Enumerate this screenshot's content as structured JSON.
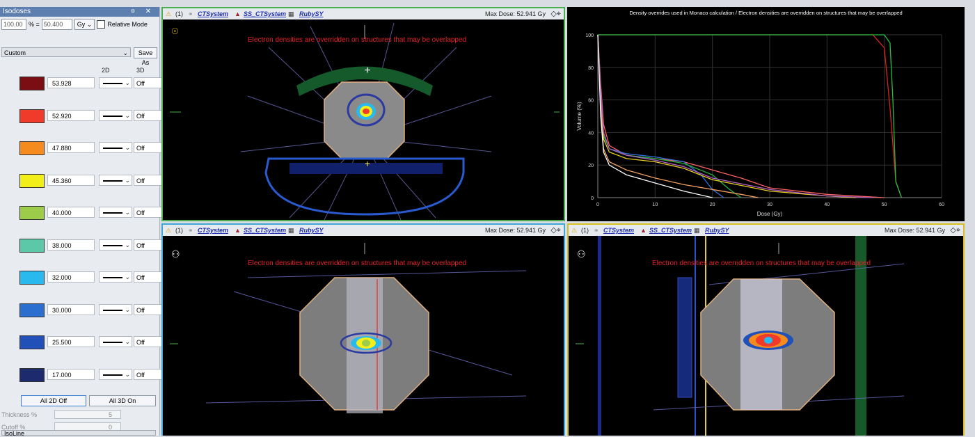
{
  "isodoses": {
    "title": "Isodoses",
    "ctrl_pin": "¤",
    "ctrl_close": "✕",
    "percent_value": "100.00",
    "percent_sign": "% =",
    "dose_value": "50.400",
    "unit": "Gy",
    "relative_mode_label": "Relative Mode",
    "preset": "Custom",
    "save_as": "Save As",
    "col_2d": "2D",
    "col_3d": "3D",
    "levels": [
      {
        "value": "53.928",
        "color": "#7a0e12",
        "toggle": "Off"
      },
      {
        "value": "52.920",
        "color": "#f03a2a",
        "toggle": "Off"
      },
      {
        "value": "47.880",
        "color": "#f58a1f",
        "toggle": "Off"
      },
      {
        "value": "45.360",
        "color": "#f2ee1a",
        "toggle": "Off"
      },
      {
        "value": "40.000",
        "color": "#9ccc4a",
        "toggle": "Off"
      },
      {
        "value": "38.000",
        "color": "#5cc8a8",
        "toggle": "Off"
      },
      {
        "value": "32.000",
        "color": "#2ab9ee",
        "toggle": "Off"
      },
      {
        "value": "30.000",
        "color": "#2a6ed0",
        "toggle": "Off"
      },
      {
        "value": "25.500",
        "color": "#2050b8",
        "toggle": "Off"
      },
      {
        "value": "17.000",
        "color": "#1e2a6e",
        "toggle": "Off"
      }
    ],
    "all_2d_off": "All 2D Off",
    "all_3d_on": "All 3D On",
    "thickness_label": "Thickness %",
    "thickness_value": "5",
    "cutoff_label": "Cutoff %",
    "cutoff_value": "0",
    "line_style": "IsoLine"
  },
  "views": {
    "count": "(1)",
    "ct_system": "CTSystem",
    "ss_ct_system": "SS_CTSystem",
    "plan": "RubySY",
    "max_dose": "Max Dose: 52.941 Gy",
    "warning": "Electron densities are overridden on structures that may be overlapped"
  },
  "dvh": {
    "title": "Density overrides used in Monaco calculation / Electron densities are overridden on structures that may be overlapped",
    "xlabel": "Dose (Gy)",
    "ylabel": "Volume (%)"
  },
  "chart_data": {
    "type": "line",
    "title": "Density overrides used in Monaco calculation / Electron densities are overridden on structures that may be overlapped",
    "xlabel": "Dose (Gy)",
    "ylabel": "Volume (%)",
    "xlim": [
      0,
      60
    ],
    "ylim": [
      0,
      100
    ],
    "xticks": [
      0,
      10,
      20,
      30,
      40,
      50,
      60
    ],
    "yticks": [
      0,
      20,
      40,
      60,
      80,
      100
    ],
    "grid": true,
    "series": [
      {
        "color": "#e02020",
        "x": [
          0,
          1,
          2,
          48,
          50,
          51,
          52,
          53
        ],
        "y": [
          100,
          100,
          100,
          100,
          92,
          55,
          10,
          0
        ]
      },
      {
        "color": "#22c040",
        "x": [
          0,
          1,
          2,
          50,
          51,
          51.5,
          52,
          53
        ],
        "y": [
          100,
          100,
          100,
          100,
          95,
          60,
          10,
          0
        ]
      },
      {
        "color": "#ff6060",
        "x": [
          0,
          0.5,
          1,
          2,
          5,
          10,
          15,
          20,
          25,
          30,
          40,
          50
        ],
        "y": [
          100,
          70,
          45,
          32,
          26,
          24,
          22,
          17,
          12,
          6,
          2,
          0
        ]
      },
      {
        "color": "#3070e0",
        "x": [
          0,
          0.5,
          1,
          2,
          5,
          10,
          15,
          18,
          20,
          22
        ],
        "y": [
          100,
          65,
          40,
          30,
          27,
          25,
          22,
          14,
          5,
          0
        ]
      },
      {
        "color": "#20b040",
        "x": [
          0,
          0.5,
          1,
          2,
          5,
          10,
          15,
          20,
          23,
          25
        ],
        "y": [
          100,
          62,
          38,
          30,
          26,
          24,
          21,
          14,
          5,
          0
        ]
      },
      {
        "color": "#e8d020",
        "x": [
          0,
          0.5,
          1,
          2,
          5,
          10,
          15,
          20,
          30,
          40,
          45
        ],
        "y": [
          100,
          60,
          36,
          28,
          24,
          22,
          18,
          11,
          4,
          1,
          0
        ]
      },
      {
        "color": "#f0a060",
        "x": [
          0,
          0.5,
          1,
          2,
          5,
          10,
          15,
          20,
          25,
          28
        ],
        "y": [
          100,
          55,
          30,
          22,
          17,
          12,
          8,
          5,
          2,
          0
        ]
      },
      {
        "color": "#b060c0",
        "x": [
          0,
          0.5,
          1,
          2,
          5,
          10,
          15,
          20,
          30,
          40,
          48
        ],
        "y": [
          100,
          63,
          40,
          30,
          26,
          23,
          19,
          12,
          5,
          1,
          0
        ]
      },
      {
        "color": "#ffffff",
        "x": [
          0,
          0.5,
          1,
          2,
          5,
          10,
          15,
          20
        ],
        "y": [
          100,
          50,
          28,
          20,
          14,
          9,
          4,
          0
        ]
      }
    ]
  }
}
